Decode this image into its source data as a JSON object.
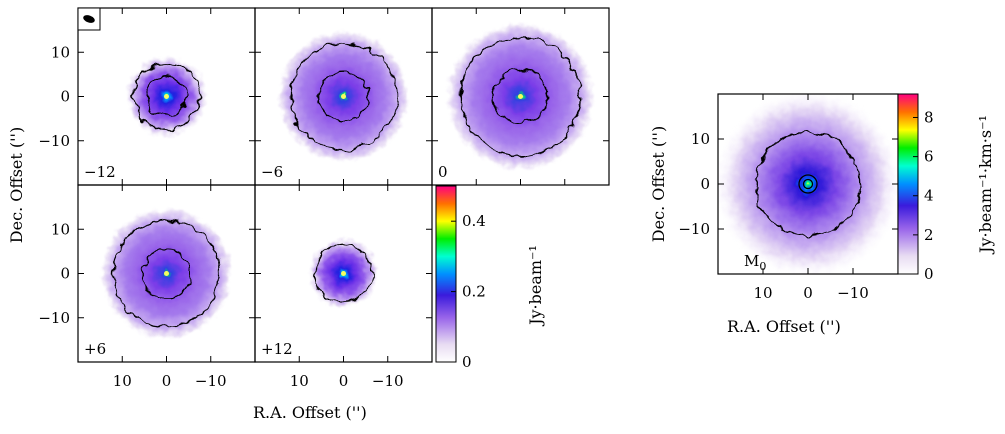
{
  "chart_data": [
    {
      "type": "heatmap",
      "title": "",
      "xlabel": "R.A. Offset ('')",
      "ylabel": "Dec. Offset ('')",
      "xlim": [
        20,
        -20
      ],
      "ylim": [
        -20,
        20
      ],
      "xticks": [
        "10",
        "0",
        "−10"
      ],
      "yticks": [
        "10",
        "0",
        "−10"
      ],
      "colorbar": {
        "label": "Jy·beam⁻¹",
        "range": [
          0,
          0.5
        ],
        "ticks": [
          "0",
          "0.2",
          "0.4"
        ]
      },
      "panels": [
        {
          "label": "−12",
          "peak": 0.45,
          "radius": 7.5,
          "contours": [
            4.5,
            7.5
          ]
        },
        {
          "label": "−6",
          "peak": 0.3,
          "radius": 12,
          "contours": [
            5.5,
            12
          ]
        },
        {
          "label": "0",
          "peak": 0.25,
          "radius": 13.5,
          "contours": [
            6,
            13.5
          ]
        },
        {
          "label": "+6",
          "peak": 0.3,
          "radius": 12,
          "contours": [
            5.5,
            12
          ]
        },
        {
          "label": "+12",
          "peak": 0.22,
          "radius": 6.5,
          "contours": [
            6.5
          ]
        }
      ],
      "beam_marker": "beam-ellipse"
    },
    {
      "type": "heatmap",
      "title": "",
      "xlabel": "R.A. Offset ('')",
      "ylabel": "Dec. Offset ('')",
      "xlim": [
        20,
        -20
      ],
      "ylim": [
        -20,
        20
      ],
      "xticks": [
        "10",
        "0",
        "−10"
      ],
      "yticks": [
        "10",
        "0",
        "−10"
      ],
      "panel_label": "M",
      "panel_label_sub": "0",
      "peak": 9,
      "contours": [
        1,
        2,
        11.5
      ],
      "colorbar": {
        "label": "Jy·beam⁻¹·km·s⁻¹",
        "range": [
          0,
          9.2
        ],
        "ticks": [
          "0",
          "2",
          "4",
          "6",
          "8"
        ]
      }
    }
  ]
}
